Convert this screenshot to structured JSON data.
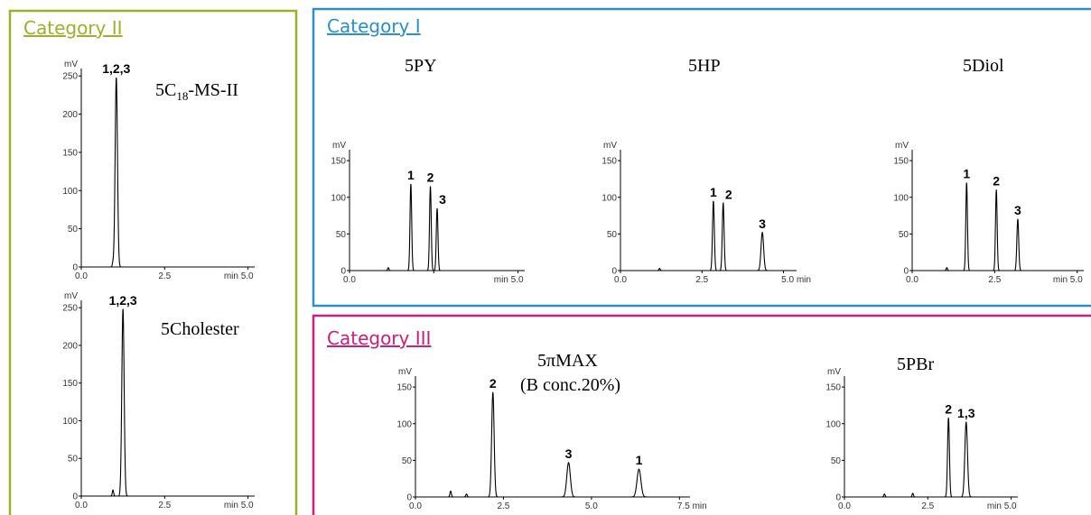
{
  "categories": [
    {
      "id": "cat2",
      "title": "Category II",
      "color": "#9cb02a"
    },
    {
      "id": "cat1",
      "title": "Category I",
      "color": "#2a90cc"
    },
    {
      "id": "cat3",
      "title": "Category III",
      "color": "#cc1f7a"
    }
  ],
  "chart_data": [
    {
      "type": "line",
      "category": "Category II",
      "title": "5C18-MS-II",
      "title_main": "5C",
      "title_sub": "18",
      "title_tail": "-MS-II",
      "ylabel": "mV",
      "xlabel": "min",
      "xlim": [
        0,
        5.2
      ],
      "ylim": [
        0,
        255
      ],
      "x_ticks": [
        0.0,
        2.5,
        5.0
      ],
      "x_tick_labels": [
        "0.0",
        "2.5",
        "min 5.0"
      ],
      "y_ticks": [
        0,
        50,
        100,
        150,
        200,
        250
      ],
      "peaks": [
        {
          "label": "1,2,3",
          "rt": 1.05,
          "height": 248,
          "width": 0.035
        }
      ],
      "disturbances": [
        {
          "rt": 0.95,
          "height": 5,
          "width": 0.02
        }
      ]
    },
    {
      "type": "line",
      "category": "Category II",
      "title": "5Cholester",
      "ylabel": "mV",
      "xlabel": "min",
      "xlim": [
        0,
        5.2
      ],
      "ylim": [
        0,
        255
      ],
      "x_ticks": [
        0.0,
        2.5,
        5.0
      ],
      "x_tick_labels": [
        "0.0",
        "2.5",
        "min 5.0"
      ],
      "y_ticks": [
        0,
        50,
        100,
        150,
        200,
        250
      ],
      "peaks": [
        {
          "label": "1,2,3",
          "rt": 1.25,
          "height": 248,
          "width": 0.035
        }
      ],
      "disturbances": [
        {
          "rt": 0.95,
          "height": 8,
          "width": 0.02
        }
      ]
    },
    {
      "type": "line",
      "category": "Category I",
      "title": "5PY",
      "ylabel": "mV",
      "xlabel": "min",
      "xlim": [
        0,
        5.2
      ],
      "ylim": [
        0,
        160
      ],
      "x_ticks": [
        0.0,
        2.5,
        5.0
      ],
      "x_tick_labels": [
        "0.0",
        "",
        "min 5.0"
      ],
      "y_ticks": [
        0,
        50,
        100,
        150
      ],
      "peaks": [
        {
          "label": "1",
          "rt": 1.82,
          "height": 118,
          "width": 0.025
        },
        {
          "label": "2",
          "rt": 2.4,
          "height": 115,
          "width": 0.025
        },
        {
          "label": "3",
          "rt": 2.6,
          "height": 85,
          "width": 0.025
        }
      ],
      "disturbances": [
        {
          "rt": 1.15,
          "height": 4,
          "width": 0.02
        }
      ]
    },
    {
      "type": "line",
      "category": "Category I",
      "title": "5HP",
      "ylabel": "mV",
      "xlabel": "min",
      "xlim": [
        0,
        5.4
      ],
      "ylim": [
        0,
        160
      ],
      "x_ticks": [
        0.0,
        2.5,
        5.0
      ],
      "x_tick_labels": [
        "0.0",
        "2.5",
        "5.0 min"
      ],
      "y_ticks": [
        0,
        50,
        100,
        150
      ],
      "peaks": [
        {
          "label": "1",
          "rt": 2.85,
          "height": 95,
          "width": 0.028
        },
        {
          "label": "2",
          "rt": 3.15,
          "height": 92,
          "width": 0.028
        },
        {
          "label": "3",
          "rt": 4.35,
          "height": 52,
          "width": 0.04
        }
      ],
      "disturbances": [
        {
          "rt": 1.2,
          "height": 3,
          "width": 0.02
        }
      ]
    },
    {
      "type": "line",
      "category": "Category I",
      "title": "5Diol",
      "ylabel": "mV",
      "xlabel": "min",
      "xlim": [
        0,
        5.2
      ],
      "ylim": [
        0,
        160
      ],
      "x_ticks": [
        0.0,
        2.5,
        5.0
      ],
      "x_tick_labels": [
        "0.0",
        "2.5",
        "min 5.0"
      ],
      "y_ticks": [
        0,
        50,
        100,
        150
      ],
      "peaks": [
        {
          "label": "1",
          "rt": 1.65,
          "height": 120,
          "width": 0.025
        },
        {
          "label": "2",
          "rt": 2.55,
          "height": 110,
          "width": 0.025
        },
        {
          "label": "3",
          "rt": 3.2,
          "height": 70,
          "width": 0.028
        }
      ],
      "disturbances": [
        {
          "rt": 1.05,
          "height": 4,
          "width": 0.02
        }
      ]
    },
    {
      "type": "line",
      "category": "Category III",
      "title": "5πMAX",
      "subtitle": "(B conc.20%)",
      "ylabel": "mV",
      "xlabel": "min",
      "xlim": [
        0,
        7.8
      ],
      "ylim": [
        0,
        160
      ],
      "x_ticks": [
        0.0,
        2.5,
        5.0,
        7.5
      ],
      "x_tick_labels": [
        "0.0",
        "2.5",
        "5.0",
        "7.5 min"
      ],
      "y_ticks": [
        0,
        50,
        100,
        150
      ],
      "peaks": [
        {
          "label": "2",
          "rt": 2.2,
          "height": 143,
          "width": 0.035
        },
        {
          "label": "3",
          "rt": 4.35,
          "height": 47,
          "width": 0.05
        },
        {
          "label": "1",
          "rt": 6.35,
          "height": 38,
          "width": 0.055
        }
      ],
      "disturbances": [
        {
          "rt": 1.0,
          "height": 8,
          "width": 0.02
        },
        {
          "rt": 1.45,
          "height": 4,
          "width": 0.02
        }
      ]
    },
    {
      "type": "line",
      "category": "Category III",
      "title": "5PBr",
      "ylabel": "mV",
      "xlabel": "min",
      "xlim": [
        0,
        5.2
      ],
      "ylim": [
        0,
        160
      ],
      "x_ticks": [
        0.0,
        2.5,
        5.0
      ],
      "x_tick_labels": [
        "0.0",
        "2.5",
        "min 5.0"
      ],
      "y_ticks": [
        0,
        50,
        100,
        150
      ],
      "peaks": [
        {
          "label": "2",
          "rt": 3.12,
          "height": 108,
          "width": 0.028
        },
        {
          "label": "1,3",
          "rt": 3.65,
          "height": 102,
          "width": 0.04
        }
      ],
      "disturbances": [
        {
          "rt": 1.2,
          "height": 4,
          "width": 0.02
        },
        {
          "rt": 2.05,
          "height": 5,
          "width": 0.02
        }
      ]
    }
  ]
}
